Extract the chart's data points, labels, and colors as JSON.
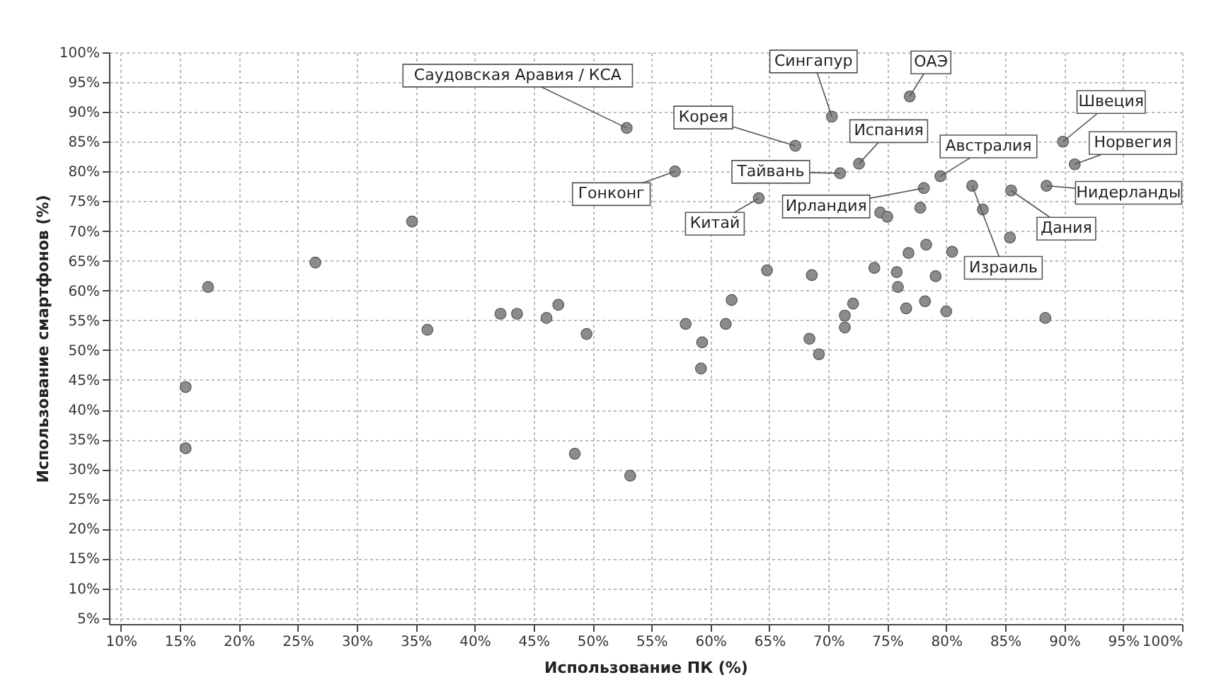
{
  "chart_data": {
    "type": "scatter",
    "xlabel": "Использование ПК (%)",
    "ylabel": "Использование смартфонов (%)",
    "xlim": [
      9,
      100
    ],
    "ylim": [
      4,
      100
    ],
    "xticks": [
      {
        "value": 10,
        "label": "10%"
      },
      {
        "value": 15,
        "label": "15%"
      },
      {
        "value": 20,
        "label": "20%"
      },
      {
        "value": 25,
        "label": "25%"
      },
      {
        "value": 30,
        "label": "30%"
      },
      {
        "value": 35,
        "label": "35%"
      },
      {
        "value": 40,
        "label": "40%"
      },
      {
        "value": 45,
        "label": "45%"
      },
      {
        "value": 50,
        "label": "50%"
      },
      {
        "value": 55,
        "label": "55%"
      },
      {
        "value": 60,
        "label": "60%"
      },
      {
        "value": 65,
        "label": "65%"
      },
      {
        "value": 70,
        "label": "70%"
      },
      {
        "value": 75,
        "label": "75%"
      },
      {
        "value": 80,
        "label": "80%"
      },
      {
        "value": 85,
        "label": "85%"
      },
      {
        "value": 90,
        "label": "90%"
      },
      {
        "value": 95,
        "label": "95%"
      },
      {
        "value": 100,
        "label": "100%"
      }
    ],
    "yticks": [
      {
        "value": 5,
        "label": "5%"
      },
      {
        "value": 10,
        "label": "10%"
      },
      {
        "value": 15,
        "label": "15%"
      },
      {
        "value": 20,
        "label": "20%"
      },
      {
        "value": 25,
        "label": "25%"
      },
      {
        "value": 30,
        "label": "30%"
      },
      {
        "value": 35,
        "label": "35%"
      },
      {
        "value": 40,
        "label": "40%"
      },
      {
        "value": 45,
        "label": "45%"
      },
      {
        "value": 50,
        "label": "50%"
      },
      {
        "value": 55,
        "label": "55%"
      },
      {
        "value": 60,
        "label": "60%"
      },
      {
        "value": 65,
        "label": "65%"
      },
      {
        "value": 70,
        "label": "70%"
      },
      {
        "value": 75,
        "label": "75%"
      },
      {
        "value": 80,
        "label": "80%"
      },
      {
        "value": 85,
        "label": "85%"
      },
      {
        "value": 90,
        "label": "90%"
      },
      {
        "value": 95,
        "label": "95%"
      },
      {
        "value": 100,
        "label": "100%"
      }
    ],
    "grid": true,
    "marker": "circle",
    "series": [
      {
        "color": "#8c8c8c",
        "x": [
          52.9,
          70.3,
          76.9,
          67.2,
          72.6,
          71,
          57,
          64.1,
          78.1,
          79.5,
          82.2,
          85.5,
          88.5,
          89.9,
          90.9,
          34.7,
          26.5,
          17.4,
          42.2,
          43.6,
          46.1,
          47.1,
          49.5,
          36,
          15.5,
          15.5,
          48.5,
          53.2,
          59.3,
          59.2,
          61.3,
          68.4,
          69.2,
          71.4,
          74.4,
          75,
          77.8,
          83.1,
          85.4,
          78.3,
          76.8,
          80.5,
          73.9,
          79.1,
          75.8,
          75.9,
          68.6,
          64.8,
          72.1,
          78.2,
          76.6,
          80,
          71.4,
          88.4,
          61.8,
          57.9
        ],
        "values": [
          87.3,
          89.2,
          92.6,
          84.3,
          81.3,
          79.7,
          80,
          75.5,
          77.2,
          79.2,
          77.6,
          76.8,
          77.6,
          85,
          81.2,
          71.6,
          64.7,
          60.6,
          56.1,
          56.1,
          55.4,
          57.6,
          52.7,
          53.4,
          43.8,
          33.5,
          32.6,
          28.9,
          51.3,
          46.9,
          54.4,
          51.9,
          49.3,
          53.8,
          73.1,
          72.4,
          73.9,
          73.6,
          68.9,
          67.7,
          66.3,
          66.5,
          63.8,
          62.4,
          63.1,
          60.6,
          62.6,
          63.4,
          57.8,
          58.2,
          57,
          56.5,
          55.8,
          55.4,
          58.4,
          54.4
        ]
      }
    ],
    "annotations": [
      {
        "text": "Саудовская Аравия / КСА",
        "x": 52.9,
        "y": 87.3
      },
      {
        "text": "Сингапур",
        "x": 70.3,
        "y": 89.2
      },
      {
        "text": "ОАЭ",
        "x": 76.9,
        "y": 92.6
      },
      {
        "text": "Корея",
        "x": 67.2,
        "y": 84.3
      },
      {
        "text": "Испания",
        "x": 72.6,
        "y": 81.3
      },
      {
        "text": "Тайвань",
        "x": 71,
        "y": 79.7
      },
      {
        "text": "Гонконг",
        "x": 57,
        "y": 80
      },
      {
        "text": "Китай",
        "x": 64.1,
        "y": 75.5
      },
      {
        "text": "Ирландия",
        "x": 78.1,
        "y": 77.2
      },
      {
        "text": "Австралия",
        "x": 79.5,
        "y": 79.2
      },
      {
        "text": "Израиль",
        "x": 82.2,
        "y": 77.6
      },
      {
        "text": "Дания",
        "x": 85.5,
        "y": 76.8
      },
      {
        "text": "Нидерланды",
        "x": 88.5,
        "y": 77.6
      },
      {
        "text": "Швеция",
        "x": 89.9,
        "y": 85
      },
      {
        "text": "Норвегия",
        "x": 90.9,
        "y": 81.2
      }
    ]
  }
}
